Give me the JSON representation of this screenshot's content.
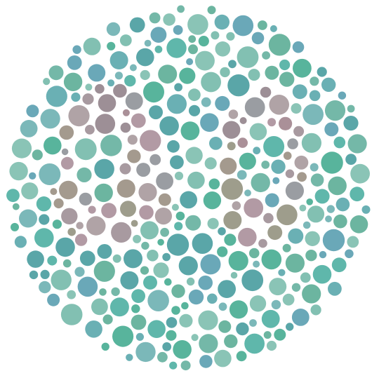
{
  "image": {
    "kind": "color-vision-test-plate",
    "hidden_figure": "",
    "colors": {
      "background": "#ffffff",
      "background_dots": [
        "#5fb7ab",
        "#6ab0b4",
        "#74b8a8",
        "#5aa6a8",
        "#82c0b2",
        "#6cb5a0",
        "#6aa8b8",
        "#7bb8b9",
        "#58b49c",
        "#8ac4b6"
      ],
      "figure_dots": [
        "#a89aa0",
        "#9d8f96",
        "#b0a3a6",
        "#a49a8e",
        "#9a9da2",
        "#aa9098",
        "#9e9d8c",
        "#b29aa4"
      ]
    }
  }
}
